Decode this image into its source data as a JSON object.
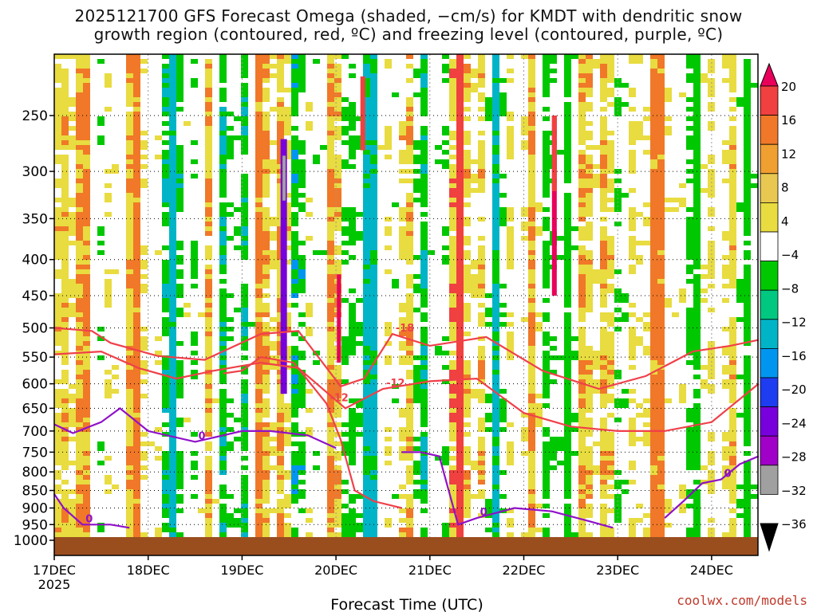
{
  "chart_data": {
    "type": "heatmap",
    "title_line1": "2025121700 GFS Forecast Omega (shaded, −cm/s) for KMDT with dendritic snow",
    "title_line2": "growth region (contoured, red, ºC) and freezing level (contoured, purple, ºC)",
    "xlabel": "Forecast Time (UTC)",
    "x_ticks": [
      "17DEC",
      "18DEC",
      "19DEC",
      "20DEC",
      "21DEC",
      "22DEC",
      "23DEC",
      "24DEC"
    ],
    "x_year_label": "2025",
    "y_ticks": [
      250,
      300,
      350,
      400,
      450,
      500,
      550,
      600,
      650,
      700,
      750,
      800,
      850,
      900,
      950,
      1000
    ],
    "ylim_hpa": [
      200,
      1050
    ],
    "colorbar": {
      "labels": [
        "20",
        "16",
        "12",
        "8",
        "4",
        "−4",
        "−8",
        "−12",
        "−16",
        "−20",
        "−24",
        "−28",
        "−32",
        "−36"
      ],
      "colors": [
        "#e8005a",
        "#f04040",
        "#f07828",
        "#f0a030",
        "#e8c850",
        "#e8dc40",
        "#ffffff",
        "#00c800",
        "#00c880",
        "#00b4c8",
        "#0096f0",
        "#1e3cf0",
        "#7800dc",
        "#a000c8",
        "#a0a0a0",
        "#000000"
      ]
    },
    "contours": {
      "dgz": [
        {
          "label": "-18",
          "day": [
            0,
            0.4,
            0.6,
            1.1,
            1.6,
            2.2,
            2.6,
            3.05,
            3.3,
            3.6,
            4.0,
            4.6,
            5.2,
            5.8,
            6.3,
            6.8,
            7.2,
            7.5
          ],
          "p": [
            500,
            505,
            525,
            548,
            555,
            510,
            505,
            605,
            590,
            510,
            530,
            515,
            575,
            610,
            585,
            540,
            530,
            520
          ]
        },
        {
          "label": "-12",
          "day": [
            0,
            0.5,
            0.9,
            1.3,
            1.7,
            2.2,
            2.6,
            3.1,
            3.5,
            4.0,
            4.5,
            5.0,
            5.5,
            6.0,
            6.5,
            7.0,
            7.5
          ],
          "p": [
            545,
            540,
            570,
            590,
            575,
            560,
            570,
            650,
            610,
            595,
            590,
            660,
            690,
            700,
            700,
            680,
            600
          ]
        },
        {
          "label": "-12",
          "day": [
            1.8,
            2.0,
            2.2,
            2.55,
            2.9,
            3.05,
            3.2,
            3.4,
            3.7
          ],
          "p": [
            580,
            575,
            550,
            560,
            640,
            720,
            850,
            880,
            900
          ]
        }
      ],
      "frz": [
        {
          "label": "0",
          "day": [
            0.0,
            0.2,
            0.5,
            0.7,
            1.0,
            1.5,
            2.0,
            2.3,
            2.7,
            3.0
          ],
          "p": [
            685,
            705,
            680,
            650,
            700,
            725,
            700,
            700,
            710,
            740
          ]
        },
        {
          "label": "0",
          "day": [
            0.0,
            0.1,
            0.3,
            0.6,
            0.8
          ],
          "p": [
            860,
            900,
            950,
            950,
            960
          ]
        },
        {
          "label": "0",
          "day": [
            3.7,
            3.9,
            4.1,
            4.3,
            4.5,
            4.9,
            5.3,
            5.7,
            5.95
          ],
          "p": [
            750,
            750,
            760,
            950,
            930,
            900,
            910,
            940,
            960
          ]
        },
        {
          "label": "0",
          "day": [
            6.5,
            6.7,
            6.9,
            7.1,
            7.3,
            7.5
          ],
          "p": [
            930,
            880,
            830,
            820,
            780,
            760
          ]
        }
      ]
    }
  },
  "credit": "coolwx.com/models"
}
